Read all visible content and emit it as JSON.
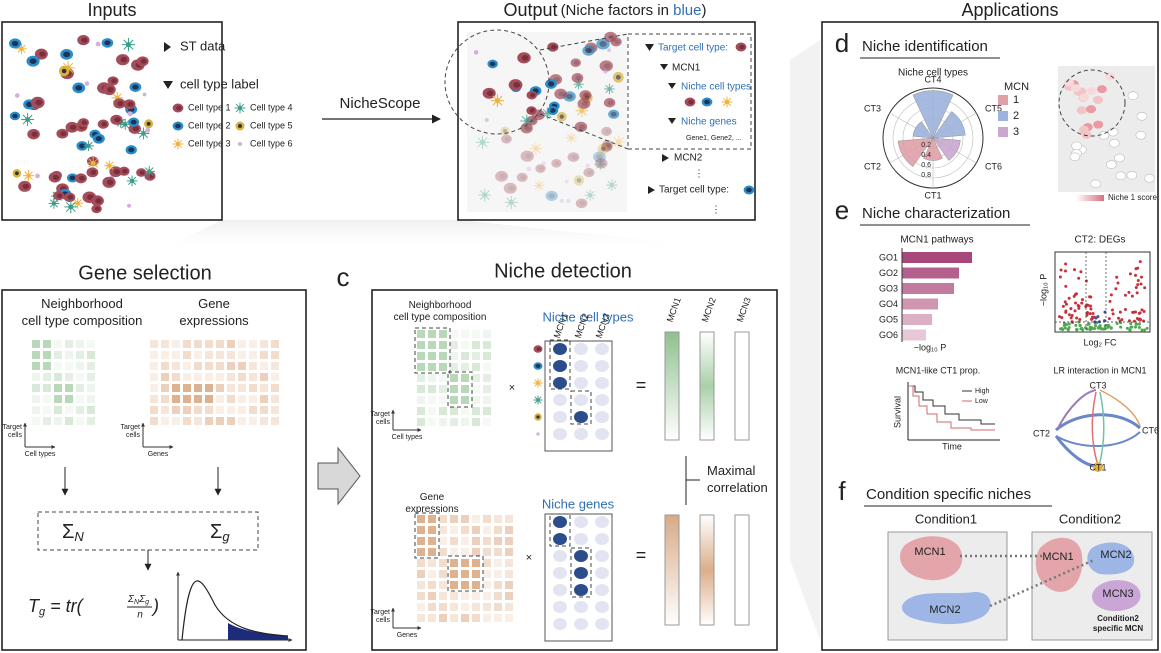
{
  "inputs": {
    "title": "Inputs",
    "items": [
      "ST data",
      "cell type label"
    ],
    "cell_types": [
      "Cell type 1",
      "Cell type 2",
      "Cell type 3",
      "Cell type 4",
      "Cell type 5",
      "Cell type 6"
    ]
  },
  "method_label": "NicheScope",
  "output": {
    "title": "Output",
    "subtitle": [
      "(Niche factors in ",
      "blue",
      ")"
    ],
    "tree": {
      "target": "Target cell type:",
      "mcn1": "MCN1",
      "niche_cell_types": "Niche cell types",
      "niche_genes": "Niche genes",
      "genes": "Gene1, Gene2, ...",
      "mcn2": "MCN2",
      "dots": "⋮",
      "target2": "Target cell type:",
      "dots2": "⋮"
    }
  },
  "applications_title": "Applications",
  "gene_selection": {
    "title": "Gene selection",
    "composition": [
      "Neighborhood",
      "cell type composition"
    ],
    "expressions": [
      "Gene",
      "expressions"
    ],
    "axes": {
      "target_cells": [
        "Target",
        "cells"
      ],
      "cell_types": "Cell types",
      "genes": "Genes"
    },
    "sigma_n": [
      "Σ",
      "N"
    ],
    "sigma_g": [
      "Σ",
      "g"
    ],
    "formula": [
      "T",
      "g",
      " = tr(",
      "Σ",
      "N",
      "Σ",
      "g",
      "n",
      ")"
    ]
  },
  "niche_detection": {
    "letter": "c",
    "title": "Niche detection",
    "composition": [
      "Neighborhood",
      "cell type composition"
    ],
    "niche_cell_types": "Niche cell types",
    "mcns": [
      "MCN1",
      "MCN2",
      "MCN3"
    ],
    "times": "×",
    "equals": "=",
    "maximal_correlation": [
      "Maximal",
      "correlation"
    ],
    "expressions": [
      "Gene",
      "expressions"
    ],
    "niche_genes": "Niche genes"
  },
  "panel_d": {
    "letter": "d",
    "title": "Niche identification",
    "polar": {
      "title": "Niche cell types",
      "categories": [
        "CT1",
        "CT2",
        "CT3",
        "CT4",
        "CT5",
        "CT6"
      ],
      "values": [
        0.45,
        0.7,
        0.4,
        0.95,
        0.65,
        0.55
      ],
      "colors": [
        "#e0a0a8",
        "#e0a0a8",
        "#9db3dd",
        "#9db3dd",
        "#9db3dd",
        "#c8a8d0"
      ],
      "rlim": [
        0,
        1
      ],
      "rticks": [
        0.2,
        0.4,
        0.6,
        0.8
      ],
      "legend_title": "MCN",
      "legend": [
        "1",
        "2",
        "3"
      ],
      "legend_colors": [
        "#e0a0a8",
        "#9db3dd",
        "#c8a8d0"
      ]
    },
    "score_label": "Niche 1 score"
  },
  "panel_e": {
    "letter": "e",
    "title": "Niche characterization",
    "pathways": {
      "title": "MCN1 pathways",
      "categories": [
        "GO1",
        "GO2",
        "GO3",
        "GO4",
        "GO5",
        "GO6"
      ],
      "values": [
        7.0,
        5.7,
        5.2,
        3.6,
        3.0,
        2.4
      ],
      "xlim": [
        0,
        8
      ],
      "xlabel": "−log₁₀ P"
    },
    "volcano": {
      "title": "CT2: DEGs",
      "ylabel": "−log₁₀ P",
      "xlabel": "Log₂ FC"
    },
    "survival": {
      "title": "MCN1-like CT1 prop.",
      "ylabel": "Survival",
      "xlabel": "Time",
      "legend": [
        "High",
        "Low"
      ]
    },
    "lr": {
      "title": "LR interaction in MCN1",
      "nodes": [
        "CT3",
        "CT2",
        "CT6",
        "CT1"
      ]
    }
  },
  "panel_f": {
    "letter": "f",
    "title": "Condition specific niches",
    "conditions": [
      "Condition1",
      "Condition2"
    ],
    "c1": [
      "MCN1",
      "MCN2"
    ],
    "c2": [
      "MCN1",
      "MCN2",
      "MCN3"
    ],
    "note": [
      "Condition2",
      "specific MCN"
    ]
  }
}
